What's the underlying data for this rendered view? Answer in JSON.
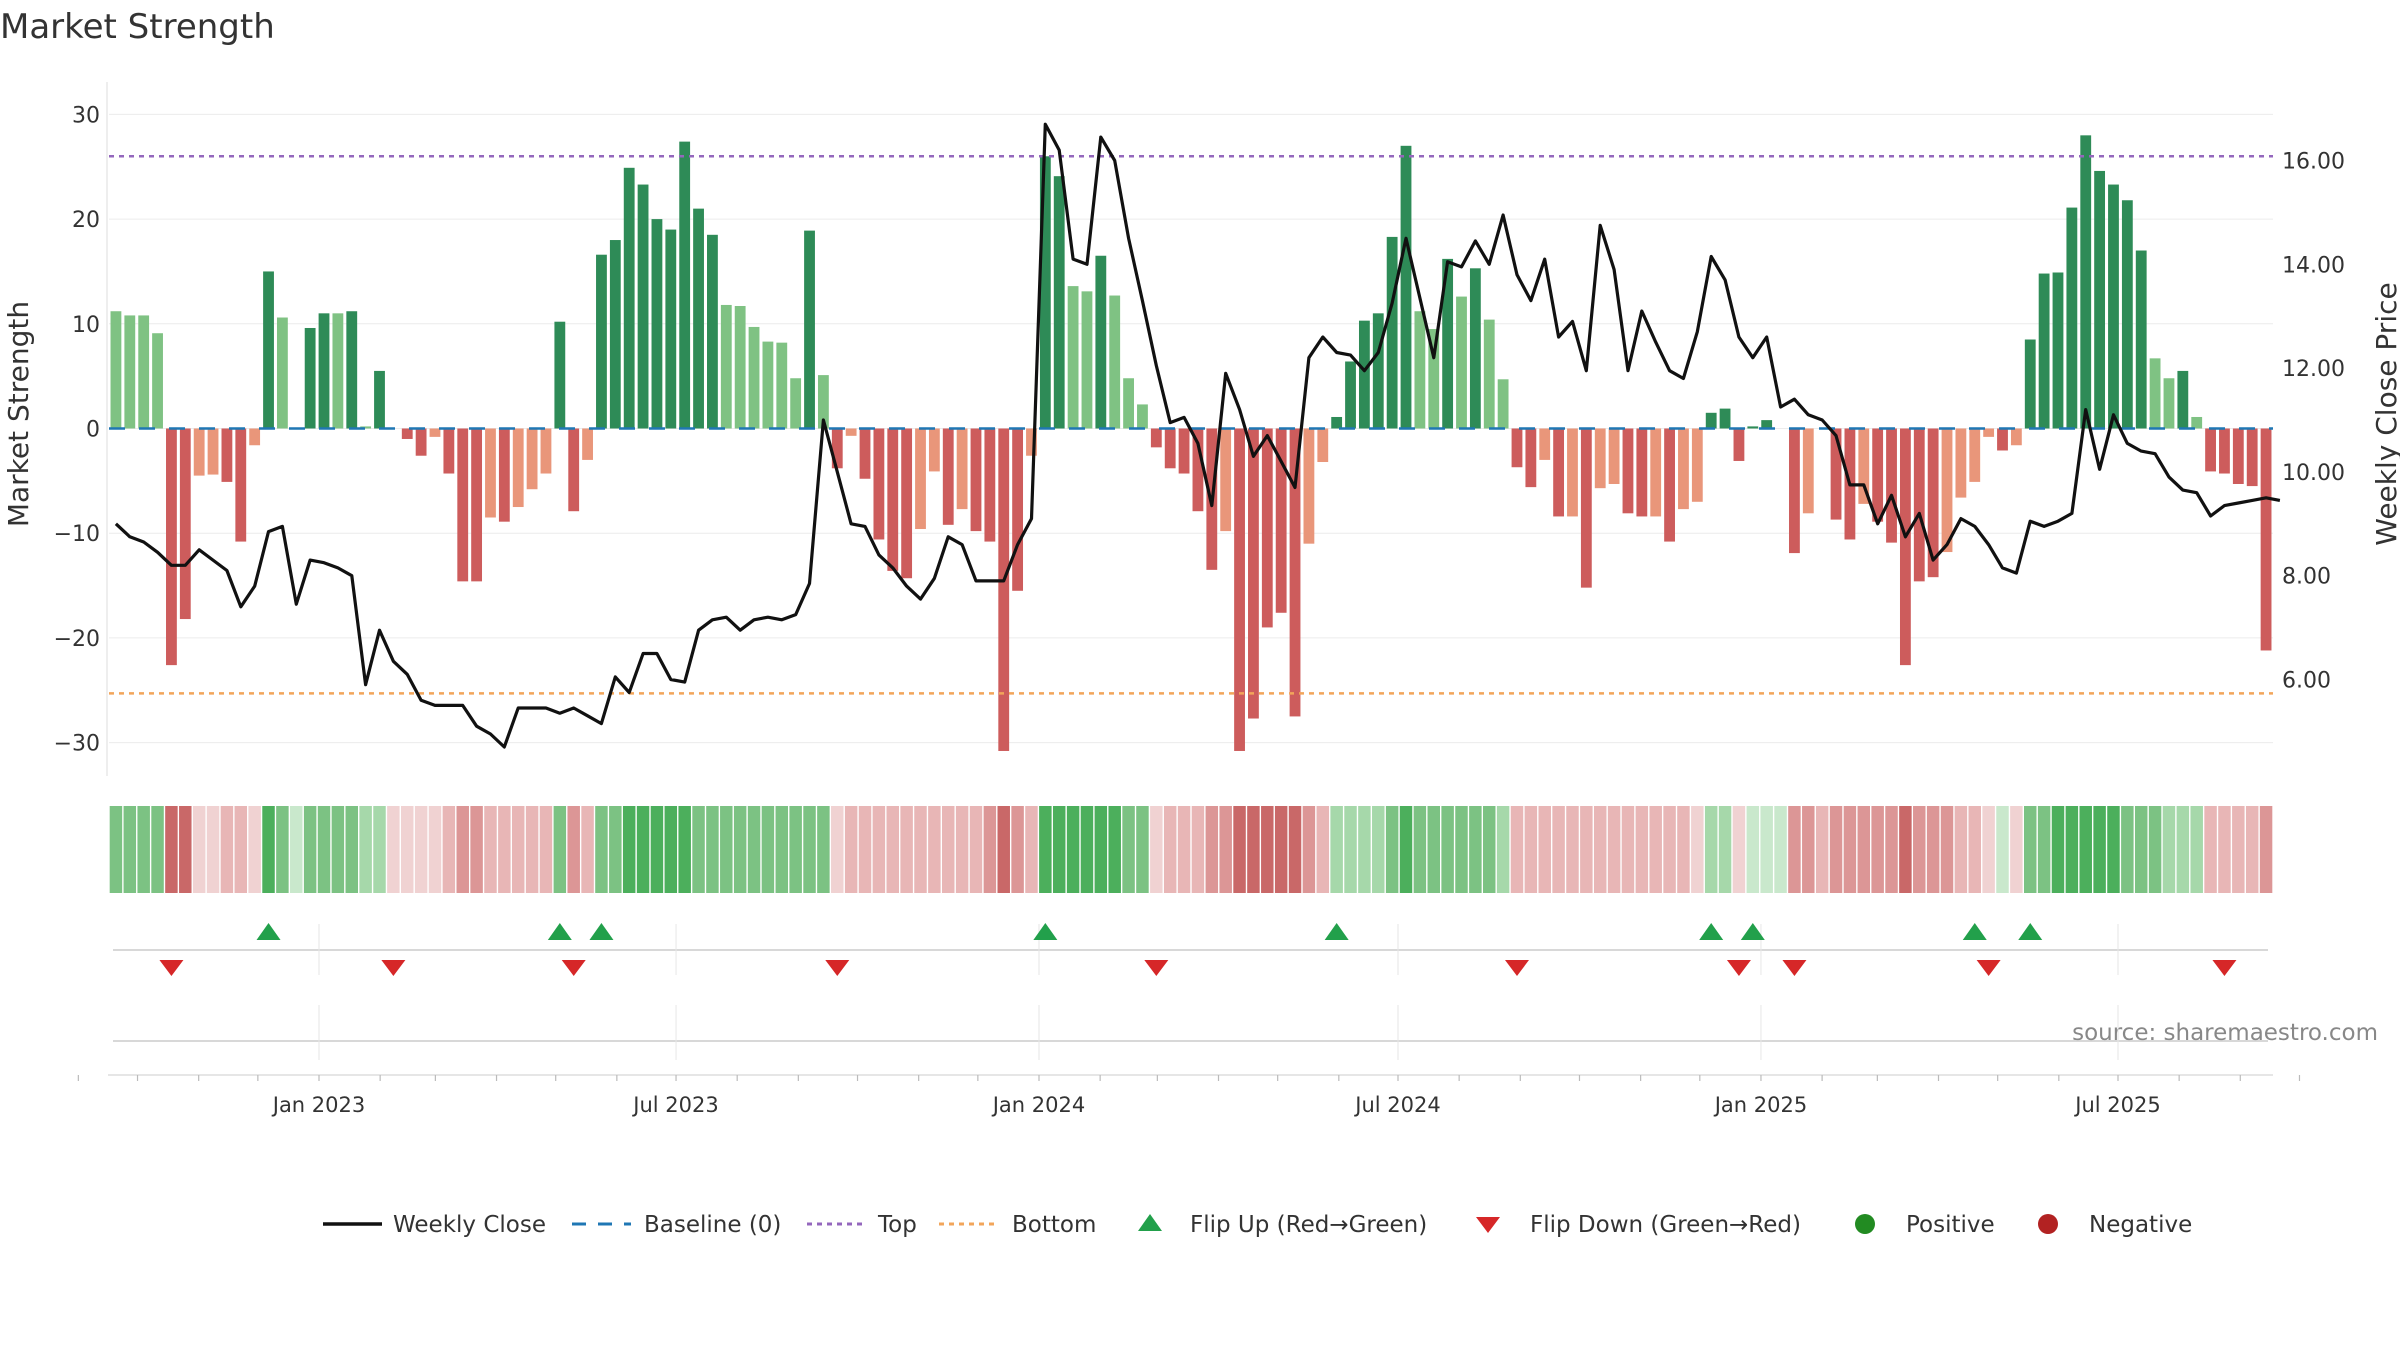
{
  "title": "Market Strength",
  "source_text": "source: sharemaestro.com",
  "colors": {
    "strong_pos": "#2e8b57",
    "weak_pos": "#7fc283",
    "strong_neg": "#cd5c5c",
    "weak_neg": "#e9967a",
    "price": "#111111",
    "baseline": "#1f77b4",
    "top": "#9467bd",
    "bottom": "#f2a55a",
    "flip_up": "#22a04b",
    "flip_down": "#d62728",
    "positive": "#228b22",
    "negative": "#b22222"
  },
  "chart_data": {
    "type": "bar",
    "title": "Market Strength",
    "ylabel": "Market Strength",
    "y2label": "Weekly Close Price",
    "ylim": [
      -33,
      33
    ],
    "y2lim": [
      4.5,
      16.95
    ],
    "yticks": [
      "30",
      "20",
      "10",
      "0",
      "−10",
      "−20",
      "−30"
    ],
    "y2ticks": [
      "16.00",
      "14.00",
      "12.00",
      "10.00",
      "8.00",
      "6.00"
    ],
    "xticks": [
      "Jan 2023",
      "Jul 2023",
      "Jan 2024",
      "Jul 2024",
      "Jan 2025",
      "Jul 2025"
    ],
    "top_level": 26,
    "bottom_level": -25.3,
    "baseline": 0,
    "strength": [
      11.2,
      10.8,
      10.8,
      9.1,
      -22.6,
      -18.2,
      -4.5,
      -4.4,
      -5.1,
      -10.8,
      -1.6,
      15.0,
      10.6,
      0,
      9.6,
      11.0,
      11.0,
      11.2,
      0.2,
      5.5,
      0,
      -1.0,
      -2.6,
      -0.8,
      -4.3,
      -14.6,
      -14.6,
      -8.5,
      -8.9,
      -7.5,
      -5.8,
      -4.3,
      10.2,
      -7.9,
      -3.0,
      16.6,
      18.0,
      24.9,
      23.3,
      20.0,
      19.0,
      27.4,
      21.0,
      18.5,
      11.8,
      11.7,
      9.7,
      8.3,
      8.2,
      4.8,
      18.9,
      5.1,
      -3.8,
      -0.7,
      -4.8,
      -10.6,
      -13.6,
      -14.3,
      -9.6,
      -4.1,
      -9.2,
      -7.7,
      -9.8,
      -10.8,
      -30.8,
      -15.5,
      -2.6,
      26.0,
      24.1,
      13.6,
      13.1,
      16.5,
      12.7,
      4.8,
      2.3,
      -1.8,
      -3.8,
      -4.3,
      -7.9,
      -13.5,
      -9.8,
      -30.8,
      -27.7,
      -19.0,
      -17.6,
      -27.5,
      -11.0,
      -3.2,
      1.1,
      6.4,
      10.3,
      11.0,
      18.3,
      27.0,
      11.2,
      9.5,
      16.2,
      12.6,
      15.3,
      10.4,
      4.7,
      -3.7,
      -5.6,
      -3.0,
      -8.4,
      -8.4,
      -15.2,
      -5.7,
      -5.3,
      -8.1,
      -8.4,
      -8.4,
      -10.8,
      -7.7,
      -7.0,
      1.5,
      1.9,
      -3.1,
      0.2,
      0.8,
      0,
      -11.9,
      -8.1,
      0,
      -8.7,
      -10.6,
      -7.2,
      -8.9,
      -10.9,
      -22.6,
      -14.6,
      -14.2,
      -11.8,
      -6.6,
      -5.1,
      -0.8,
      -2.1,
      -1.6,
      8.5,
      14.8,
      14.9,
      21.1,
      28.0,
      24.6,
      23.3,
      21.8,
      17.0,
      6.7,
      4.8,
      5.5,
      1.1,
      -4.1,
      -4.3,
      -5.3,
      -5.5,
      -21.2
    ],
    "intensity_strips": [
      3,
      3,
      3,
      3,
      -4,
      -4,
      -1,
      -1,
      -2,
      -2,
      -1,
      4,
      3,
      1,
      3,
      3,
      3,
      3,
      2,
      2,
      -1,
      -1,
      -1,
      -1,
      -2,
      -3,
      -3,
      -2,
      -2,
      -2,
      -2,
      -2,
      3,
      -3,
      -2,
      3,
      3,
      4,
      4,
      4,
      4,
      4,
      3,
      3,
      3,
      3,
      3,
      3,
      3,
      3,
      3,
      3,
      -1,
      -2,
      -2,
      -2,
      -2,
      -2,
      -2,
      -2,
      -2,
      -2,
      -2,
      -3,
      -4,
      -3,
      -2,
      4,
      4,
      4,
      4,
      4,
      4,
      3,
      3,
      -1,
      -2,
      -2,
      -2,
      -3,
      -3,
      -4,
      -4,
      -4,
      -4,
      -4,
      -3,
      -2,
      2,
      2,
      2,
      2,
      3,
      4,
      3,
      3,
      3,
      3,
      3,
      3,
      2,
      -2,
      -2,
      -2,
      -2,
      -2,
      -2,
      -2,
      -2,
      -2,
      -2,
      -2,
      -2,
      -2,
      -1,
      2,
      2,
      -1,
      1,
      1,
      1,
      -3,
      -3,
      -2,
      -3,
      -3,
      -3,
      -3,
      -3,
      -4,
      -3,
      -3,
      -3,
      -2,
      -2,
      -1,
      1,
      -1,
      3,
      3,
      4,
      4,
      4,
      4,
      4,
      3,
      3,
      3,
      2,
      2,
      2,
      -2,
      -2,
      -2,
      -2,
      -3
    ],
    "price": [
      9.0,
      8.75,
      8.65,
      8.45,
      8.2,
      8.2,
      8.5,
      8.3,
      8.1,
      7.4,
      7.8,
      8.85,
      8.95,
      7.45,
      8.3,
      8.25,
      8.15,
      8.0,
      5.9,
      6.95,
      6.35,
      6.1,
      5.6,
      5.5,
      5.5,
      5.5,
      5.1,
      4.95,
      4.7,
      5.45,
      5.45,
      5.45,
      5.35,
      5.45,
      5.3,
      5.15,
      6.05,
      5.75,
      6.5,
      6.5,
      6.0,
      5.95,
      6.95,
      7.15,
      7.2,
      6.95,
      7.15,
      7.2,
      7.15,
      7.25,
      7.85,
      11.0,
      10.0,
      9.0,
      8.95,
      8.4,
      8.15,
      7.8,
      7.55,
      7.95,
      8.75,
      8.6,
      7.9,
      7.9,
      7.9,
      8.6,
      9.1,
      16.7,
      16.2,
      14.1,
      14.0,
      16.45,
      16.0,
      14.5,
      13.3,
      12.05,
      10.95,
      11.05,
      10.55,
      9.35,
      11.9,
      11.2,
      10.3,
      10.7,
      10.2,
      9.7,
      12.2,
      12.6,
      12.3,
      12.25,
      11.95,
      12.3,
      13.25,
      14.5,
      13.35,
      12.2,
      14.05,
      13.95,
      14.45,
      14.0,
      14.95,
      13.8,
      13.3,
      14.1,
      12.6,
      12.9,
      11.95,
      14.75,
      13.9,
      11.95,
      13.1,
      12.5,
      11.95,
      11.8,
      12.7,
      14.15,
      13.7,
      12.6,
      12.2,
      12.6,
      11.25,
      11.4,
      11.1,
      11.0,
      10.7,
      9.75,
      9.75,
      9.0,
      9.55,
      8.75,
      9.2,
      8.3,
      8.6,
      9.1,
      8.95,
      8.6,
      8.15,
      8.05,
      9.05,
      8.95,
      9.05,
      9.2,
      11.2,
      10.05,
      11.1,
      10.55,
      10.4,
      10.35,
      9.9,
      9.65,
      9.6,
      9.15,
      9.35,
      9.4,
      9.45,
      9.5,
      9.45
    ],
    "flip_up_indices": [
      11,
      32,
      35,
      67,
      88,
      115,
      118,
      134,
      138
    ],
    "flip_down_indices": [
      4,
      20,
      33,
      52,
      75,
      101,
      117,
      121,
      135,
      152
    ],
    "legend": [
      "Weekly Close",
      "Baseline (0)",
      "Top",
      "Bottom",
      "Flip Up (Red→Green)",
      "Flip Down (Green→Red)",
      "Positive",
      "Negative"
    ]
  }
}
